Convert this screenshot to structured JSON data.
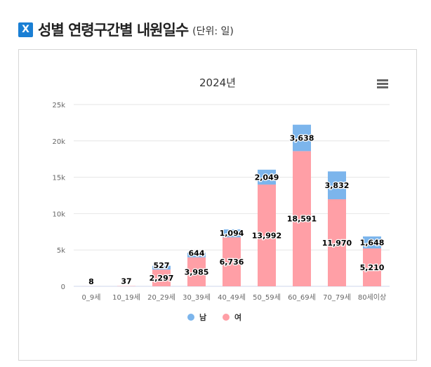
{
  "header": {
    "title": "성별 연령구간별 내원일수",
    "unit": "(단위: 일)"
  },
  "chart_data": {
    "type": "bar",
    "stacked": true,
    "title": "2024년",
    "categories": [
      "0_9세",
      "10_19세",
      "20_29세",
      "30_39세",
      "40_49세",
      "50_59세",
      "60_69세",
      "70_79세",
      "80세이상"
    ],
    "series": [
      {
        "name": "남",
        "color": "#7cb5ec",
        "values": [
          0,
          0,
          527,
          644,
          1094,
          2049,
          3638,
          3832,
          1648
        ]
      },
      {
        "name": "여",
        "color": "#ff9fa6",
        "values": [
          8,
          37,
          2297,
          3985,
          6736,
          13992,
          18591,
          11970,
          5210
        ]
      }
    ],
    "yticks": [
      "0",
      "5k",
      "10k",
      "15k",
      "20k",
      "25k"
    ],
    "ylim": [
      0,
      25000
    ],
    "grid": true,
    "legend": "bottom"
  }
}
